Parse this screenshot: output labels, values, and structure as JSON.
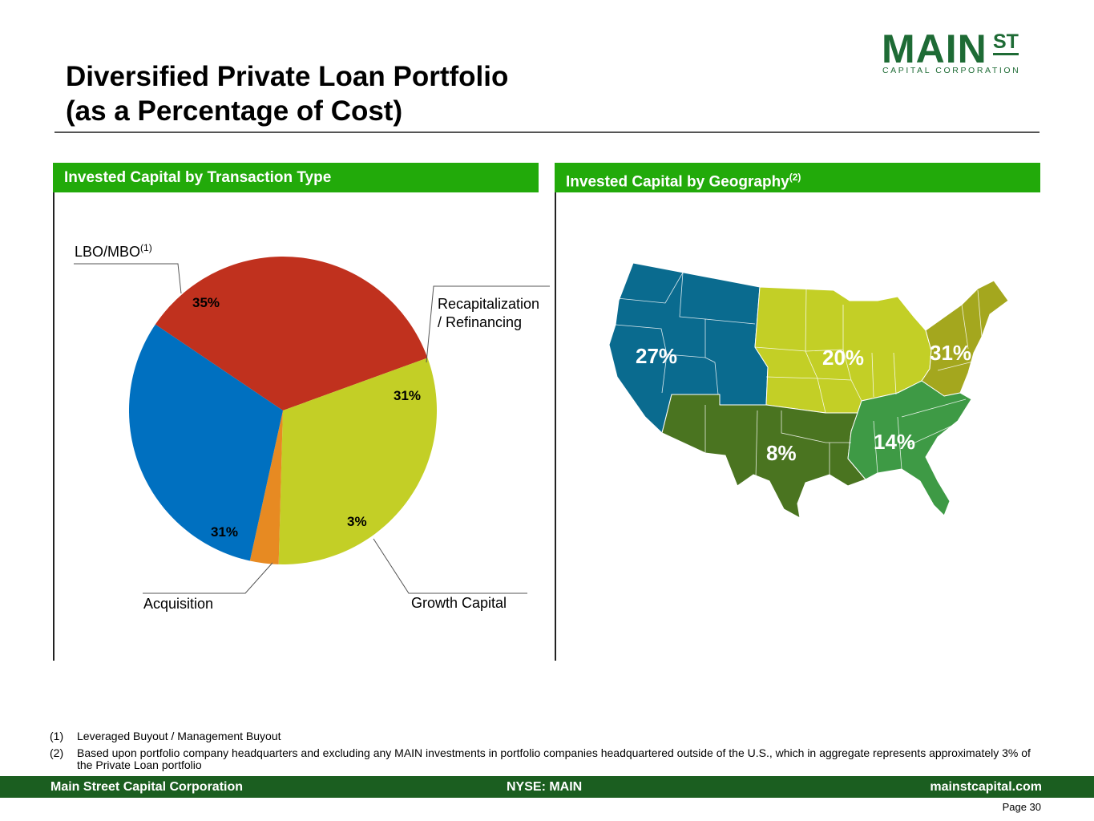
{
  "header": {
    "title_line1": "Diversified Private Loan Portfolio",
    "title_line2": "(as a Percentage of Cost)"
  },
  "logo": {
    "main": "MAIN",
    "st": "ST",
    "subtitle": "CAPITAL CORPORATION",
    "color": "#1e6b35"
  },
  "left_panel": {
    "heading": "Invested Capital by Transaction Type"
  },
  "right_panel": {
    "heading": "Invested Capital by Geography",
    "heading_sup": "(2)"
  },
  "chart_data": [
    {
      "type": "pie",
      "title": "Invested Capital by Transaction Type",
      "slices": [
        {
          "label": "LBO/MBO",
          "label_sup": "(1)",
          "value": 35,
          "pct_label": "35%",
          "color": "#c0311e"
        },
        {
          "label": "Recapitalization / Refinancing",
          "label_line1": "Recapitalization",
          "label_line2": "/ Refinancing",
          "value": 31,
          "pct_label": "31%",
          "color": "#c3cf26"
        },
        {
          "label": "Growth Capital",
          "value": 3,
          "pct_label": "3%",
          "color": "#e78a22"
        },
        {
          "label": "Acquisition",
          "value": 31,
          "pct_label": "31%",
          "color": "#0070c0"
        }
      ]
    },
    {
      "type": "map",
      "title": "Invested Capital by Geography",
      "regions": [
        {
          "name": "West",
          "value": 27,
          "pct_label": "27%",
          "color": "#0a6b8f"
        },
        {
          "name": "Midwest",
          "value": 20,
          "pct_label": "20%",
          "color": "#c3cf26"
        },
        {
          "name": "Northeast",
          "value": 31,
          "pct_label": "31%",
          "color": "#a4a71e"
        },
        {
          "name": "Southwest",
          "value": 8,
          "pct_label": "8%",
          "color": "#4a7420"
        },
        {
          "name": "Southeast",
          "value": 14,
          "pct_label": "14%",
          "color": "#3e9a45"
        }
      ]
    }
  ],
  "footnotes": [
    {
      "num": "(1)",
      "text": "Leveraged Buyout / Management Buyout"
    },
    {
      "num": "(2)",
      "text": "Based upon portfolio company headquarters and excluding any MAIN investments in portfolio companies headquartered outside of the U.S., which in aggregate represents approximately 3% of the Private Loan portfolio"
    }
  ],
  "footer": {
    "left": "Main Street Capital Corporation",
    "center": "NYSE: MAIN",
    "right": "mainstcapital.com",
    "bar_color": "#1b5e20"
  },
  "page": {
    "label": "Page  30"
  }
}
